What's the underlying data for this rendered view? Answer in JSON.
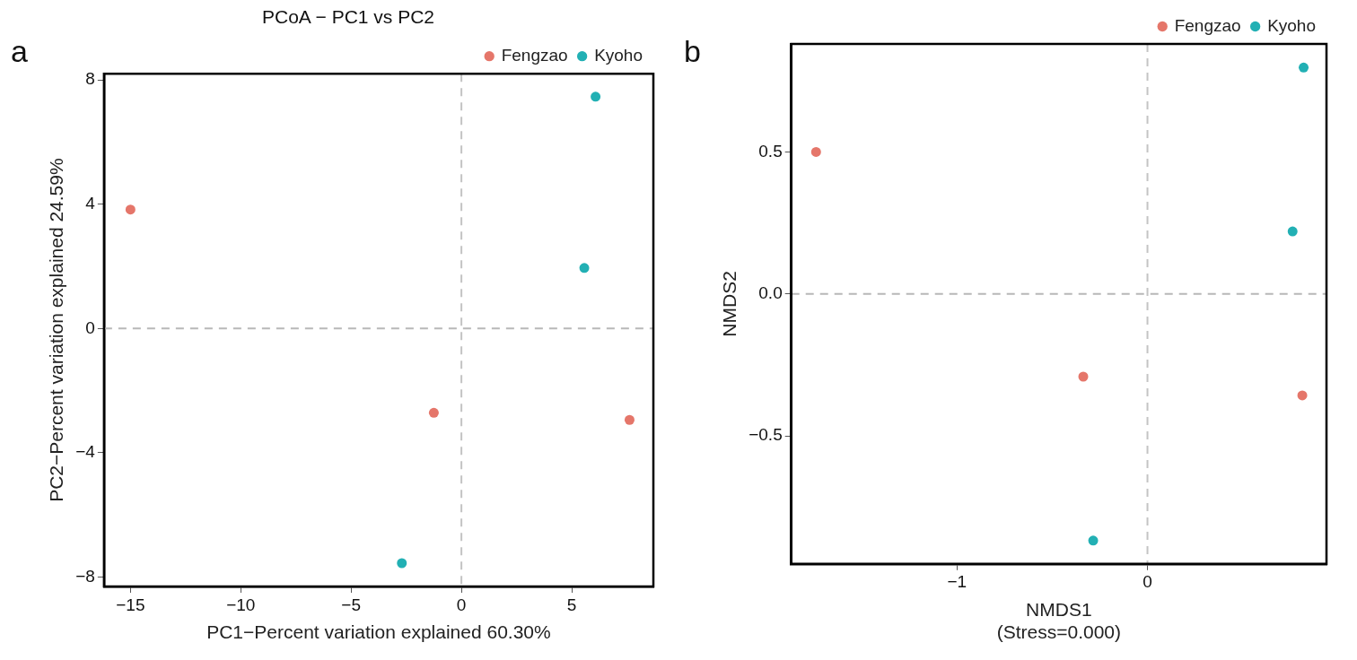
{
  "chart_data": [
    {
      "type": "scatter",
      "title": "PCoA − PC1 vs PC2",
      "xlabel": "PC1−Percent variation explained 60.30%",
      "ylabel": "PC2−Percent variation explained 24.59%",
      "annotations": [
        "a"
      ],
      "series": [
        {
          "name": "Fengzao",
          "color": "#e5766a",
          "x": [
            -15.0,
            -1.25,
            7.62
          ],
          "values": [
            3.83,
            -2.71,
            -2.94
          ]
        },
        {
          "name": "Kyoho",
          "color": "#22b0b4",
          "x": [
            6.08,
            5.57,
            -2.7
          ],
          "values": [
            7.46,
            1.95,
            -7.55
          ]
        }
      ],
      "xlim": [
        -16.2,
        8.7
      ],
      "ylim": [
        -8.3,
        8.2
      ],
      "xticks": [
        {
          "value": -15,
          "label": "−15"
        },
        {
          "value": -10,
          "label": "−10"
        },
        {
          "value": -5,
          "label": "−5"
        },
        {
          "value": 0,
          "label": "0"
        },
        5
      ],
      "yticks": [
        {
          "value": -8,
          "label": "−8"
        },
        {
          "value": -4,
          "label": "−4"
        },
        {
          "value": 0,
          "label": "0"
        },
        4,
        8
      ],
      "ref_lines": [
        {
          "axis": "x",
          "value": 0,
          "color": "#c4c4c4",
          "line_style": "dashed"
        },
        {
          "axis": "y",
          "value": 0,
          "color": "#b8b8b8",
          "line_style": "dashed"
        }
      ],
      "grid": false,
      "legend": "top right",
      "marker": "circle"
    },
    {
      "type": "scatter",
      "xlabel": "NMDS1\n(Stress=0.000)",
      "ylabel": "NMDS2",
      "annotations": [
        "b"
      ],
      "series": [
        {
          "name": "Fengzao",
          "color": "#e5766a",
          "x": [
            -1.74,
            -0.337,
            0.813
          ],
          "values": [
            0.5,
            -0.291,
            -0.357
          ]
        },
        {
          "name": "Kyoho",
          "color": "#22b0b4",
          "x": [
            0.82,
            0.762,
            -0.285
          ],
          "values": [
            0.797,
            0.22,
            -0.868
          ]
        }
      ],
      "xlim": [
        -1.87,
        0.94
      ],
      "ylim": [
        -0.95,
        0.88
      ],
      "xticks": [
        {
          "value": -1,
          "label": "−1"
        },
        {
          "value": 0,
          "label": "0"
        }
      ],
      "yticks": [
        {
          "value": -0.5,
          "label": "−0.5"
        },
        {
          "value": 0,
          "label": "0.0"
        },
        0.5
      ],
      "ref_lines": [
        {
          "axis": "x",
          "value": 0,
          "color": "#c4c4c4",
          "line_style": "dashed"
        },
        {
          "axis": "y",
          "value": 0,
          "color": "#b8b8b8",
          "line_style": "dashed"
        }
      ],
      "grid": false,
      "legend": "top right",
      "marker": "circle"
    }
  ]
}
